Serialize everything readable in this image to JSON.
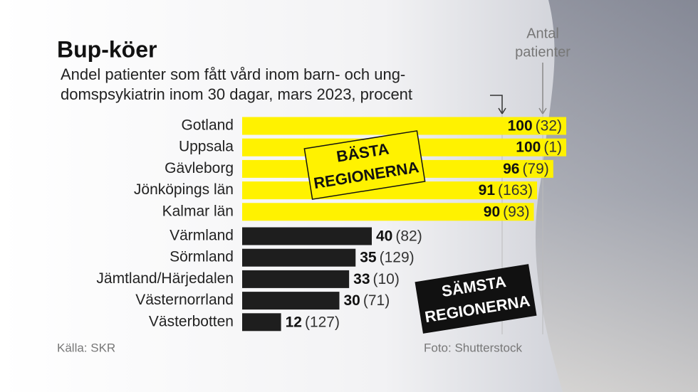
{
  "chart_data": {
    "type": "bar",
    "title": "Bup-köer",
    "subtitle": [
      "Andel patienter som fått vård inom barn- och ung-",
      "domspsykiatrin inom 30 dagar, mars 2023, procent"
    ],
    "annotation": [
      "Antal",
      "patienter"
    ],
    "xlim": [
      0,
      100
    ],
    "groups": [
      {
        "label": [
          "BÄSTA",
          "REGIONERNA"
        ],
        "color": "#fff200",
        "categories": [
          "Gotland",
          "Uppsala",
          "Gävleborg",
          "Jönköpings län",
          "Kalmar län"
        ],
        "values": [
          100,
          100,
          96,
          91,
          90
        ],
        "patients": [
          32,
          1,
          79,
          163,
          93
        ],
        "patient_labels": [
          "(32)",
          "(1)",
          "(79)",
          "(163)",
          "(93)"
        ]
      },
      {
        "label": [
          "SÄMSTA",
          "REGIONERNA"
        ],
        "color": "#1e1e1e",
        "categories": [
          "Värmland",
          "Sörmland",
          "Jämtland/Härjedalen",
          "Västernorrland",
          "Västerbotten"
        ],
        "values": [
          40,
          35,
          33,
          30,
          12
        ],
        "patients": [
          82,
          129,
          10,
          71,
          127
        ],
        "patient_labels": [
          "(82)",
          "(129)",
          "(10)",
          "(71)",
          "(127)"
        ]
      }
    ],
    "source": "Källa: SKR",
    "credit": "Foto: Shutterstock"
  }
}
